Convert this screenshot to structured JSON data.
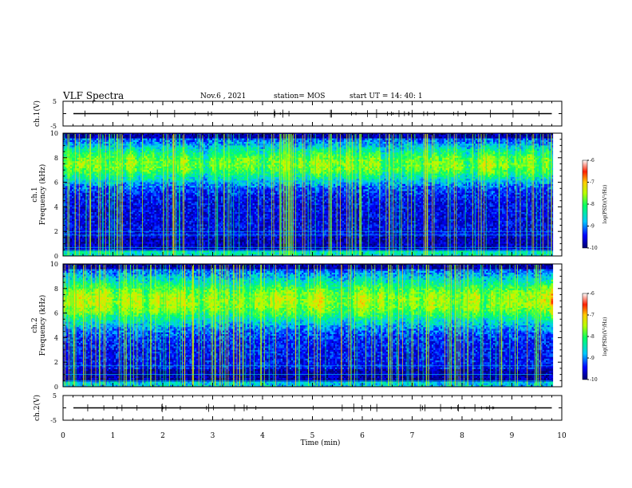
{
  "header": {
    "title": "VLF Spectra",
    "date": "Nov.6  , 2021",
    "station": "station= MOS",
    "start_ut": "start  UT  =   14: 40: 1"
  },
  "chart_data": {
    "type": "heatmap",
    "xlabel": "Time  (min)",
    "xlim": [
      0,
      10
    ],
    "x_ticks": [
      "0",
      "1",
      "2",
      "3",
      "4",
      "5",
      "6",
      "7",
      "8",
      "9",
      "10"
    ],
    "panels": [
      {
        "id": "ch1_waveform",
        "ylabel": "ch.1(V)",
        "ylim": [
          -5,
          5
        ],
        "y_ticks": [
          "5",
          "-5"
        ],
        "signal_level": 0,
        "data_end_min": 9.8
      },
      {
        "id": "ch1_spectrogram",
        "ylabel_lines": [
          "ch.1",
          "Frequency (kHz)"
        ],
        "ylim": [
          0,
          10
        ],
        "y_ticks": [
          "0",
          "2",
          "4",
          "6",
          "8",
          "10"
        ],
        "data_end_min": 9.8
      },
      {
        "id": "ch2_spectrogram",
        "ylabel_lines": [
          "ch.2",
          "Frequency (kHz)"
        ],
        "ylim": [
          0,
          10
        ],
        "y_ticks": [
          "0",
          "2",
          "4",
          "6",
          "8",
          "10"
        ],
        "data_end_min": 9.8
      },
      {
        "id": "ch2_waveform",
        "ylabel": "ch.2(V)",
        "ylim": [
          -5,
          5
        ],
        "y_ticks": [
          "5",
          "-5"
        ],
        "signal_level": 0,
        "data_end_min": 9.8
      }
    ],
    "colorbar": {
      "label": "log(PSD)(V²/Hz)",
      "range": [
        -10,
        -6
      ],
      "ticks": [
        "-6",
        "-7",
        "-8",
        "-9",
        "-10"
      ],
      "colors": [
        "#000070",
        "#0000ff",
        "#00c8ff",
        "#00ff66",
        "#b4ff00",
        "#ffcc00",
        "#ff2000",
        "#ffffff"
      ]
    },
    "grid": false
  }
}
